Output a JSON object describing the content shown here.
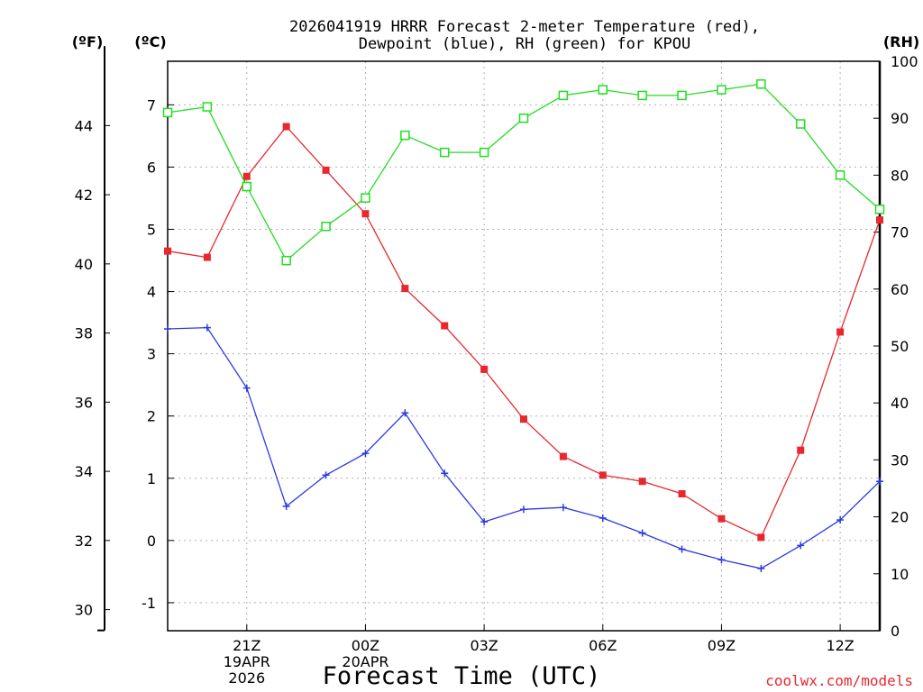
{
  "chart_data": {
    "type": "line",
    "title_line1": "2026041919 HRRR Forecast 2-meter Temperature (red),",
    "title_line2": "Dewpoint (blue), RH (green) for KPOU",
    "xlabel": "Forecast Time (UTC)",
    "left_outer_axis_label": "(ºF)",
    "left_inner_axis_label": "(ºC)",
    "right_axis_label": "(RH)",
    "credit": "coolwx.com/models",
    "x_hours": [
      19,
      20,
      21,
      22,
      23,
      24,
      25,
      26,
      27,
      28,
      29,
      30,
      31,
      32,
      33,
      34,
      35,
      36,
      37
    ],
    "x_range": [
      19,
      37
    ],
    "x_ticks": [
      {
        "hour": 21,
        "lines": [
          "21Z",
          "19APR",
          "2026"
        ]
      },
      {
        "hour": 24,
        "lines": [
          "00Z",
          "20APR"
        ]
      },
      {
        "hour": 27,
        "lines": [
          "03Z"
        ]
      },
      {
        "hour": 30,
        "lines": [
          "06Z"
        ]
      },
      {
        "hour": 33,
        "lines": [
          "09Z"
        ]
      },
      {
        "hour": 36,
        "lines": [
          "12Z"
        ]
      }
    ],
    "celsius_range": [
      -1.45,
      7.7
    ],
    "celsius_ticks": [
      "-1",
      "0",
      "1",
      "2",
      "3",
      "4",
      "5",
      "6",
      "7"
    ],
    "fahrenheit_ticks": [
      "30",
      "32",
      "34",
      "36",
      "38",
      "40",
      "42",
      "44"
    ],
    "rh_range": [
      0,
      100
    ],
    "rh_ticks": [
      "0",
      "10",
      "20",
      "30",
      "40",
      "50",
      "60",
      "70",
      "80",
      "90",
      "100"
    ],
    "series": [
      {
        "name": "Temperature",
        "unit": "C",
        "color": "#e8282e",
        "marker": "filled-square",
        "values": [
          4.65,
          4.55,
          5.85,
          6.65,
          5.95,
          5.25,
          4.05,
          3.45,
          2.75,
          1.95,
          1.35,
          1.05,
          0.95,
          0.75,
          0.35,
          0.05,
          1.45,
          3.35,
          5.15
        ]
      },
      {
        "name": "Dewpoint",
        "unit": "C",
        "color": "#2c3ae0",
        "marker": "plus",
        "values": [
          3.4,
          3.42,
          2.45,
          0.55,
          1.05,
          1.4,
          2.05,
          1.08,
          0.3,
          0.5,
          0.53,
          0.36,
          0.12,
          -0.14,
          -0.31,
          -0.45,
          -0.08,
          0.33,
          0.95
        ]
      },
      {
        "name": "RH",
        "unit": "%",
        "color": "#22dd22",
        "marker": "open-square",
        "values": [
          91,
          92,
          78,
          65,
          71,
          76,
          87,
          84,
          84,
          90,
          94,
          95,
          94,
          94,
          95,
          96,
          89,
          80,
          74
        ]
      }
    ]
  }
}
